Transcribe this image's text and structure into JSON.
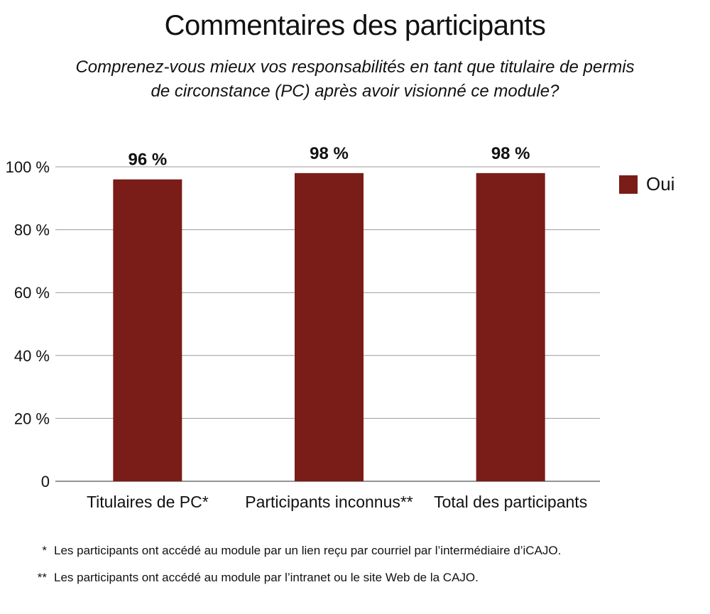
{
  "header": {
    "title": "Commentaires des participants",
    "subtitle_line1": "Comprenez-vous mieux vos responsabilités en tant que titulaire de permis",
    "subtitle_line2": "de circonstance (PC) après avoir visionné ce module?"
  },
  "chart_data": {
    "type": "bar",
    "title": "Commentaires des participants",
    "subtitle": "Comprenez-vous mieux vos responsabilités en tant que titulaire de permis de circonstance (PC) après avoir visionné ce module?",
    "categories": [
      "Titulaires de PC*",
      "Participants inconnus**",
      "Total des participants"
    ],
    "series": [
      {
        "name": "Oui",
        "values": [
          96,
          98,
          98
        ],
        "color": "#7a1c18"
      }
    ],
    "data_labels": [
      "96 %",
      "98 %",
      "98 %"
    ],
    "y_ticks": [
      0,
      20,
      40,
      60,
      80,
      100
    ],
    "y_tick_labels": [
      "0",
      "20 %",
      "40 %",
      "60 %",
      "80 %",
      "100 %"
    ],
    "ylim": [
      0,
      100
    ],
    "grid": true,
    "legend_position": "right",
    "xlabel": "",
    "ylabel": ""
  },
  "legend": {
    "label": "Oui",
    "color": "#7a1c18"
  },
  "footnotes": [
    {
      "mark": "*",
      "text": "Les participants ont accédé au module par un lien reçu par courriel par l’intermédiaire d’iCAJO."
    },
    {
      "mark": "**",
      "text": "Les participants ont accédé au module par l’intranet ou le site Web de la CAJO."
    }
  ]
}
